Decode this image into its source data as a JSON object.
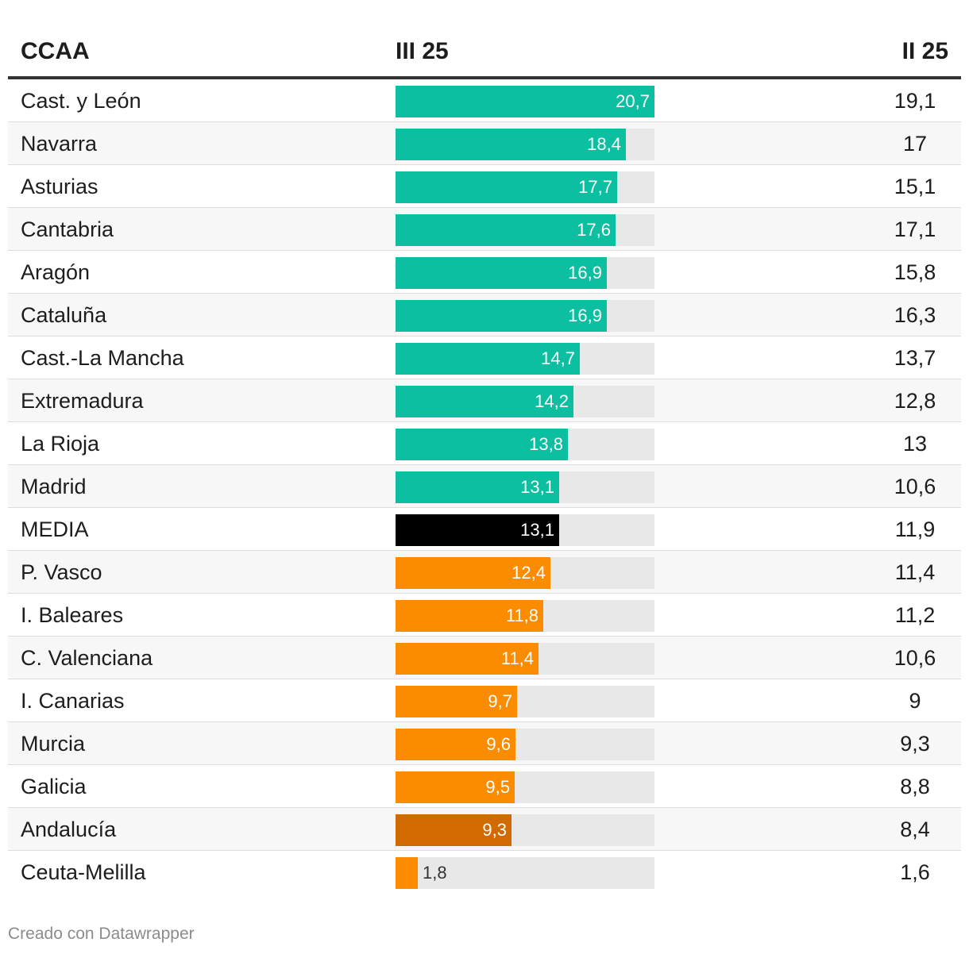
{
  "chart_data": {
    "type": "table",
    "columns": [
      "CCAA",
      "III 25",
      "II 25"
    ],
    "max": 20.7,
    "rows": [
      {
        "ccaa": "Cast. y León",
        "iii25": 20.7,
        "iii25_label": "20,7",
        "ii25": "19,1",
        "color": "#0bbfa0"
      },
      {
        "ccaa": "Navarra",
        "iii25": 18.4,
        "iii25_label": "18,4",
        "ii25": "17",
        "color": "#0bbfa0"
      },
      {
        "ccaa": "Asturias",
        "iii25": 17.7,
        "iii25_label": "17,7",
        "ii25": "15,1",
        "color": "#0bbfa0"
      },
      {
        "ccaa": "Cantabria",
        "iii25": 17.6,
        "iii25_label": "17,6",
        "ii25": "17,1",
        "color": "#0bbfa0"
      },
      {
        "ccaa": "Aragón",
        "iii25": 16.9,
        "iii25_label": "16,9",
        "ii25": "15,8",
        "color": "#0bbfa0"
      },
      {
        "ccaa": "Cataluña",
        "iii25": 16.9,
        "iii25_label": "16,9",
        "ii25": "16,3",
        "color": "#0bbfa0"
      },
      {
        "ccaa": "Cast.-La Mancha",
        "iii25": 14.7,
        "iii25_label": "14,7",
        "ii25": "13,7",
        "color": "#0bbfa0"
      },
      {
        "ccaa": "Extremadura",
        "iii25": 14.2,
        "iii25_label": "14,2",
        "ii25": "12,8",
        "color": "#0bbfa0"
      },
      {
        "ccaa": "La Rioja",
        "iii25": 13.8,
        "iii25_label": "13,8",
        "ii25": "13",
        "color": "#0bbfa0"
      },
      {
        "ccaa": "Madrid",
        "iii25": 13.1,
        "iii25_label": "13,1",
        "ii25": "10,6",
        "color": "#0bbfa0"
      },
      {
        "ccaa": "MEDIA",
        "iii25": 13.1,
        "iii25_label": "13,1",
        "ii25": "11,9",
        "color": "#000000"
      },
      {
        "ccaa": "P. Vasco",
        "iii25": 12.4,
        "iii25_label": "12,4",
        "ii25": "11,4",
        "color": "#fb8c00"
      },
      {
        "ccaa": "I. Baleares",
        "iii25": 11.8,
        "iii25_label": "11,8",
        "ii25": "11,2",
        "color": "#fb8c00"
      },
      {
        "ccaa": "C. Valenciana",
        "iii25": 11.4,
        "iii25_label": "11,4",
        "ii25": "10,6",
        "color": "#fb8c00"
      },
      {
        "ccaa": "I. Canarias",
        "iii25": 9.7,
        "iii25_label": "9,7",
        "ii25": "9",
        "color": "#fb8c00"
      },
      {
        "ccaa": "Murcia",
        "iii25": 9.6,
        "iii25_label": "9,6",
        "ii25": "9,3",
        "color": "#fb8c00"
      },
      {
        "ccaa": "Galicia",
        "iii25": 9.5,
        "iii25_label": "9,5",
        "ii25": "8,8",
        "color": "#fb8c00"
      },
      {
        "ccaa": "Andalucía",
        "iii25": 9.3,
        "iii25_label": "9,3",
        "ii25": "8,4",
        "color": "#d16a00"
      },
      {
        "ccaa": "Ceuta-Melilla",
        "iii25": 1.8,
        "iii25_label": "1,8",
        "ii25": "1,6",
        "color": "#fb8c00"
      }
    ]
  },
  "header": {
    "col1": "CCAA",
    "col2": "III 25",
    "col3": "II 25"
  },
  "footer": {
    "credit": "Creado con Datawrapper"
  }
}
